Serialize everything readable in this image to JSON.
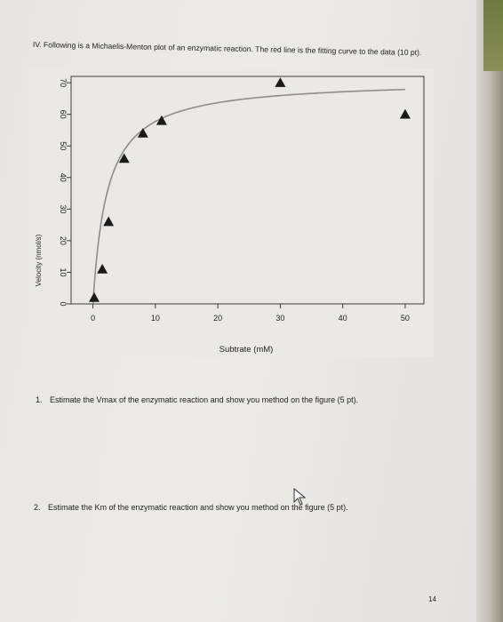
{
  "header": {
    "text": "IV. Following is a Michaelis-Menton plot of an enzymatic reaction.  The red line is the fitting curve  to the data (10 pt)."
  },
  "chart_data": {
    "type": "scatter",
    "xlabel": "Subtrate (mM)",
    "ylabel": "Velocity (nmol/s)",
    "xlim": [
      -3.5,
      53
    ],
    "ylim": [
      0,
      72
    ],
    "x_ticks": [
      0,
      10,
      20,
      30,
      40,
      50
    ],
    "x_tick_labels": [
      "0",
      "10",
      "20",
      "30",
      "40",
      "50"
    ],
    "y_ticks": [
      0,
      10,
      20,
      30,
      40,
      50,
      60,
      70
    ],
    "y_tick_labels": [
      "0",
      "10",
      "20",
      "30",
      "40",
      "50",
      "60",
      "70"
    ],
    "points": {
      "x": [
        0.2,
        1.5,
        2.5,
        5,
        8,
        11,
        30,
        50
      ],
      "y": [
        2,
        11,
        26,
        46,
        54,
        58,
        70,
        60
      ]
    },
    "fit_curve": {
      "model": "michaelis-menten",
      "vmax": 71,
      "km": 2.3
    },
    "grid": false,
    "legend": "none",
    "colors": {
      "points": "#1a1a1a",
      "fit_line": "#8d8d8d",
      "axes": "#2a2a2a"
    }
  },
  "questions": [
    {
      "number": "1.",
      "text": "Estimate the Vmax of the enzymatic reaction and show you method on the figure (5 pt)."
    },
    {
      "number": "2.",
      "text": "Estimate the Km of the enzymatic reaction and show you method on the figure (5 pt)."
    }
  ],
  "footer": {
    "page_number": "14"
  },
  "icons": {
    "cursor": "cursor-arrow-icon"
  }
}
